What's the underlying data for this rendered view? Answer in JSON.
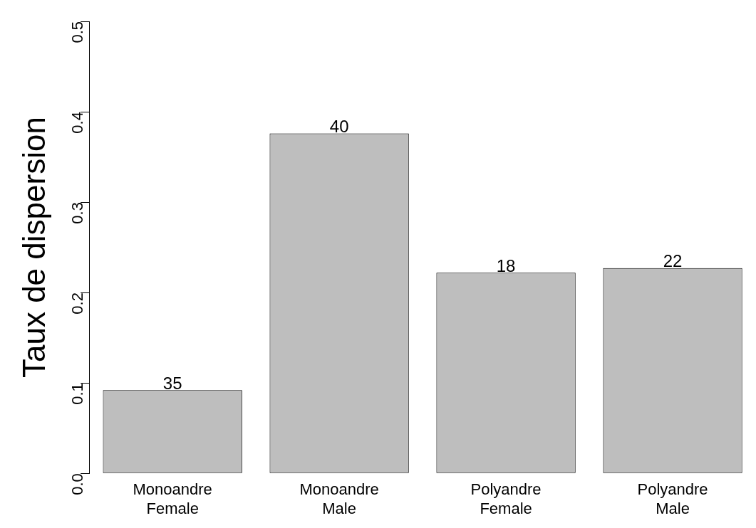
{
  "chart_data": {
    "type": "bar",
    "ylabel": "Taux de dispersion",
    "categories": [
      "Monoandre\nFemale",
      "Monoandre\nMale",
      "Polyandre\nFemale",
      "Polyandre\nMale"
    ],
    "values": [
      0.092,
      0.376,
      0.222,
      0.227
    ],
    "annotations": [
      {
        "text": "35",
        "x": "Monoandre\nFemale",
        "y": 0.092
      },
      {
        "text": "40",
        "x": "Monoandre\nMale",
        "y": 0.376
      },
      {
        "text": "18",
        "x": "Polyandre\nFemale",
        "y": 0.222
      },
      {
        "text": "22",
        "x": "Polyandre\nMale",
        "y": 0.227
      }
    ],
    "color": "#bebebe",
    "ylim": [
      0,
      0.5
    ],
    "yticks": [
      {
        "value": 0,
        "label": "0.0"
      },
      0.1,
      0.2,
      0.3,
      0.4,
      0.5
    ],
    "grid": false,
    "legend": false
  }
}
